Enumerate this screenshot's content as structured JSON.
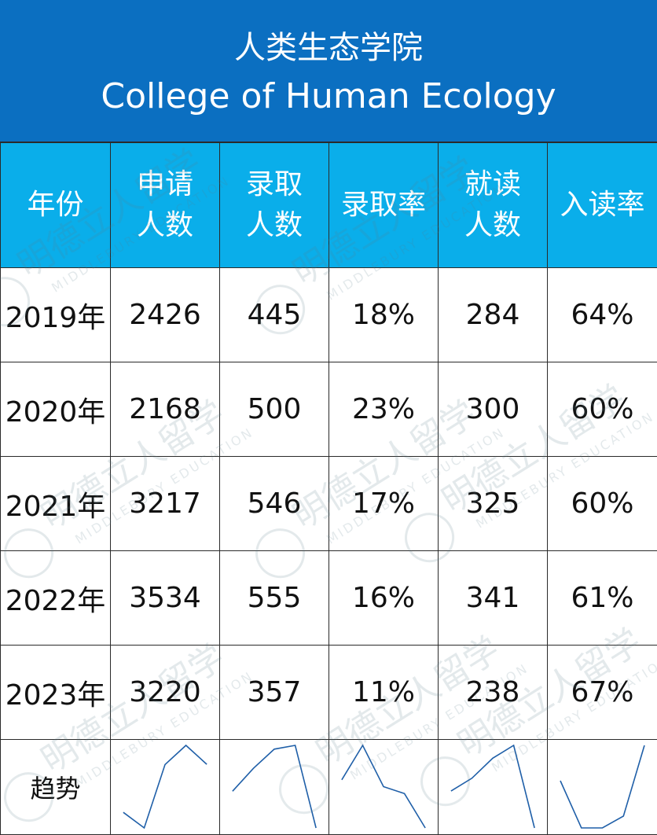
{
  "title": {
    "cn": "人类生态学院",
    "en": "College of Human Ecology"
  },
  "watermark": {
    "cn": "明德立人留学",
    "en": "MIDDLEBURY EDUCATION"
  },
  "colors": {
    "title_bg": "#0b6fc1",
    "header_bg": "#0aaeea",
    "spark_line": "#1f5fa8"
  },
  "headers": [
    "年份",
    "申请人数",
    "录取人数",
    "录取率",
    "就读人数",
    "入读率"
  ],
  "trend_label": "趋势",
  "chart_data": {
    "type": "table",
    "columns": [
      "年份",
      "申请人数",
      "录取人数",
      "录取率",
      "就读人数",
      "入读率"
    ],
    "rows": [
      [
        "2019年",
        "2426",
        "445",
        "18%",
        "284",
        "64%"
      ],
      [
        "2020年",
        "2168",
        "500",
        "23%",
        "300",
        "60%"
      ],
      [
        "2021年",
        "3217",
        "546",
        "17%",
        "325",
        "60%"
      ],
      [
        "2022年",
        "3534",
        "555",
        "16%",
        "341",
        "61%"
      ],
      [
        "2023年",
        "3220",
        "357",
        "11%",
        "238",
        "67%"
      ]
    ],
    "sparklines": {
      "type": "line",
      "x": [
        "2019年",
        "2020年",
        "2021年",
        "2022年",
        "2023年"
      ],
      "series": [
        {
          "values": [
            2426,
            2168,
            3217,
            3534,
            3220
          ]
        },
        {
          "values": [
            445,
            500,
            546,
            555,
            357
          ]
        },
        {
          "values": [
            18,
            23,
            17,
            16,
            11
          ]
        },
        {
          "values": [
            284,
            300,
            325,
            341,
            238
          ]
        },
        {
          "values": [
            64,
            60,
            60,
            61,
            67
          ]
        }
      ]
    }
  }
}
